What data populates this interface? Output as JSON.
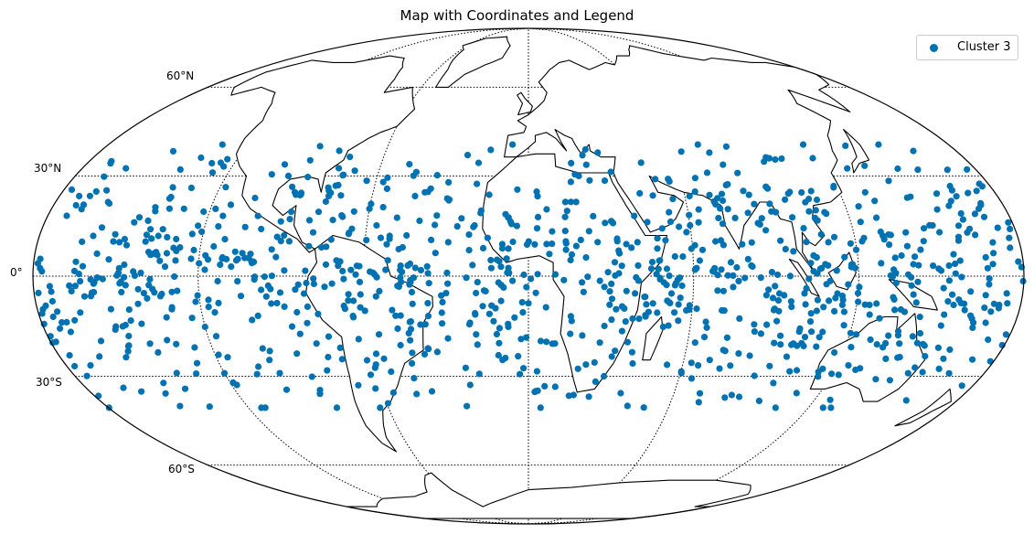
{
  "title": "Map with Coordinates and Legend",
  "parallel_labels": [
    "60°N",
    "30°N",
    "0°",
    "30°S",
    "60°S"
  ],
  "legend": {
    "label": "Cluster 3",
    "marker": "circle",
    "color": "#0072b2"
  },
  "colors": {
    "points": "#0072b2",
    "coastline": "#000000",
    "graticule": "#000000",
    "background": "#ffffff"
  },
  "chart_data": {
    "type": "scatter",
    "projection": "mollweide",
    "parallels": [
      -60,
      -30,
      0,
      30,
      60
    ],
    "meridians": [
      -180,
      -120,
      -60,
      0,
      60,
      120,
      180
    ],
    "graticule_style": "dotted",
    "legend_position": "top-right",
    "series": [
      {
        "name": "Cluster 3",
        "color": "#0072b2",
        "lat_range": [
          -40,
          40
        ],
        "lon_range": [
          -180,
          180
        ],
        "approx_count": 1100,
        "sample_points": [
          [
            -160,
            22
          ],
          [
            -150,
            10
          ],
          [
            -140,
            -5
          ],
          [
            -130,
            20
          ],
          [
            -120,
            -15
          ],
          [
            -110,
            5
          ],
          [
            -100,
            -25
          ],
          [
            -90,
            12
          ],
          [
            -80,
            -20
          ],
          [
            -70,
            18
          ],
          [
            -60,
            20
          ],
          [
            -50,
            -10
          ],
          [
            -40,
            25
          ],
          [
            -30,
            -5
          ],
          [
            -20,
            15
          ],
          [
            -10,
            -25
          ],
          [
            0,
            -8
          ],
          [
            10,
            -20
          ],
          [
            20,
            30
          ],
          [
            30,
            -30
          ],
          [
            40,
            10
          ],
          [
            50,
            -15
          ],
          [
            60,
            15
          ],
          [
            70,
            -25
          ],
          [
            80,
            5
          ],
          [
            90,
            -10
          ],
          [
            100,
            -20
          ],
          [
            110,
            10
          ],
          [
            120,
            -5
          ],
          [
            130,
            25
          ],
          [
            140,
            -20
          ],
          [
            150,
            15
          ],
          [
            160,
            -10
          ],
          [
            170,
            20
          ],
          [
            175,
            -8
          ],
          [
            -175,
            -12
          ]
        ]
      }
    ]
  }
}
